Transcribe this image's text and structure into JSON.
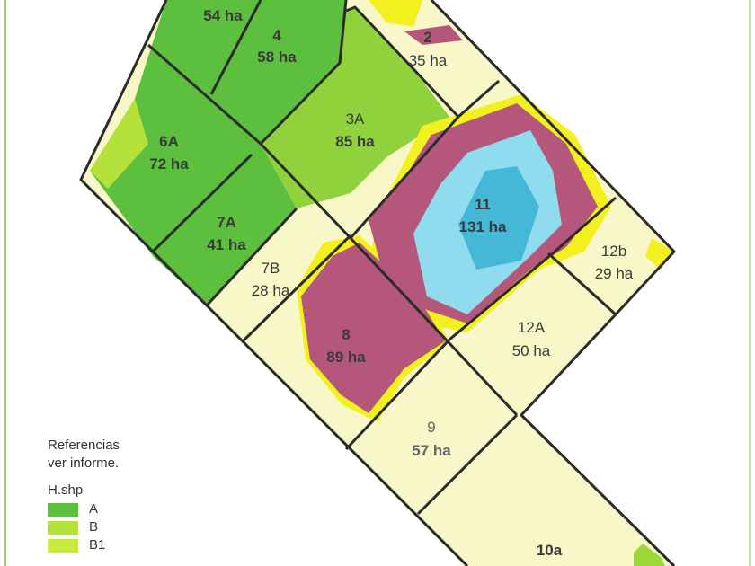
{
  "legend": {
    "title_line1": "Referencias",
    "title_line2": "ver informe.",
    "layer": "H.shp",
    "items": [
      {
        "label": "A",
        "color": "#5cbf3e"
      },
      {
        "label": "B",
        "color": "#b4e13a"
      },
      {
        "label": "B1",
        "color": "#c8ea3c"
      }
    ]
  },
  "zone_colors": {
    "A": "#5cbf3e",
    "B": "#b4e13a",
    "light": "#f7f7c8",
    "yellow": "#f2f01e",
    "purple": "#b4577a",
    "cyan": "#8fdcef",
    "cyan_dark": "#45b8d8"
  },
  "lots": [
    {
      "id": "",
      "area": "54 ha"
    },
    {
      "id": "4",
      "area": "58 ha"
    },
    {
      "id": "2",
      "area": "35 ha"
    },
    {
      "id": "3A",
      "area": "85 ha"
    },
    {
      "id": "6A",
      "area": "72 ha"
    },
    {
      "id": "11",
      "area": "131 ha"
    },
    {
      "id": "7A",
      "area": "41 ha"
    },
    {
      "id": "12b",
      "area": "29 ha"
    },
    {
      "id": "7B",
      "area": "28 ha"
    },
    {
      "id": "12A",
      "area": "50 ha"
    },
    {
      "id": "8",
      "area": "89 ha"
    },
    {
      "id": "9",
      "area": "57 ha"
    },
    {
      "id": "10a",
      "area": ""
    }
  ]
}
